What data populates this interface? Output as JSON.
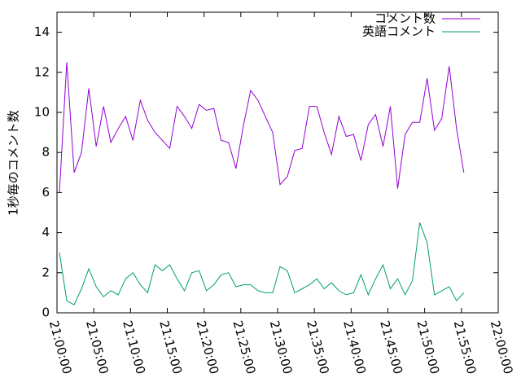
{
  "chart_data": {
    "type": "line",
    "ylabel": "1秒毎のコメント数",
    "x": [
      "21:00:20",
      "21:01:20",
      "21:02:20",
      "21:03:20",
      "21:04:20",
      "21:05:20",
      "21:06:20",
      "21:07:20",
      "21:08:20",
      "21:09:20",
      "21:10:20",
      "21:11:20",
      "21:12:20",
      "21:13:20",
      "21:14:20",
      "21:15:20",
      "21:16:20",
      "21:17:20",
      "21:18:20",
      "21:19:20",
      "21:20:20",
      "21:21:20",
      "21:22:20",
      "21:23:20",
      "21:24:20",
      "21:25:20",
      "21:26:20",
      "21:27:20",
      "21:28:20",
      "21:29:20",
      "21:30:20",
      "21:31:20",
      "21:32:20",
      "21:33:20",
      "21:34:20",
      "21:35:20",
      "21:36:20",
      "21:37:20",
      "21:38:20",
      "21:39:20",
      "21:40:20",
      "21:41:20",
      "21:42:20",
      "21:43:20",
      "21:44:20",
      "21:45:20",
      "21:46:20",
      "21:47:20",
      "21:48:20",
      "21:49:20",
      "21:50:20",
      "21:51:20",
      "21:52:20",
      "21:53:20",
      "21:54:20",
      "21:55:20"
    ],
    "series": [
      {
        "name": "コメント数",
        "color": "#9400d3",
        "values": [
          6.0,
          12.5,
          7.0,
          8.0,
          11.2,
          8.3,
          10.3,
          8.5,
          9.2,
          9.8,
          8.6,
          10.6,
          9.6,
          9.0,
          8.6,
          8.2,
          10.3,
          9.8,
          9.2,
          10.4,
          10.1,
          10.2,
          8.6,
          8.5,
          7.2,
          9.3,
          11.1,
          10.6,
          9.8,
          9.0,
          6.4,
          6.8,
          8.1,
          8.2,
          10.3,
          10.3,
          9.0,
          7.9,
          9.8,
          8.8,
          8.9,
          7.6,
          9.4,
          9.9,
          8.3,
          10.3,
          6.2,
          8.9,
          9.5,
          9.5,
          11.7,
          9.1,
          9.7,
          12.3,
          9.2,
          7.0
        ]
      },
      {
        "name": "英語コメント",
        "color": "#009e73",
        "values": [
          3.0,
          0.6,
          0.4,
          1.2,
          2.2,
          1.3,
          0.8,
          1.1,
          0.9,
          1.7,
          2.0,
          1.4,
          1.0,
          2.4,
          2.1,
          2.4,
          1.7,
          1.1,
          2.0,
          2.1,
          1.1,
          1.4,
          1.9,
          2.0,
          1.3,
          1.4,
          1.4,
          1.1,
          1.0,
          1.0,
          2.3,
          2.1,
          1.0,
          1.2,
          1.4,
          1.7,
          1.2,
          1.5,
          1.1,
          0.9,
          1.0,
          1.9,
          0.9,
          1.7,
          2.4,
          1.2,
          1.7,
          0.9,
          1.6,
          4.5,
          3.5,
          0.9,
          1.1,
          1.3,
          0.6,
          1.0
        ]
      }
    ],
    "xlim": [
      "21:00:00",
      "22:00:00"
    ],
    "xticks": [
      "21:00:00",
      "21:05:00",
      "21:10:00",
      "21:15:00",
      "21:20:00",
      "21:25:00",
      "21:30:00",
      "21:35:00",
      "21:40:00",
      "21:45:00",
      "21:50:00",
      "21:55:00",
      "22:00:00"
    ],
    "ylim": [
      0,
      15
    ],
    "yticks": [
      0,
      2,
      4,
      6,
      8,
      10,
      12,
      14
    ],
    "legend": "top-right"
  }
}
